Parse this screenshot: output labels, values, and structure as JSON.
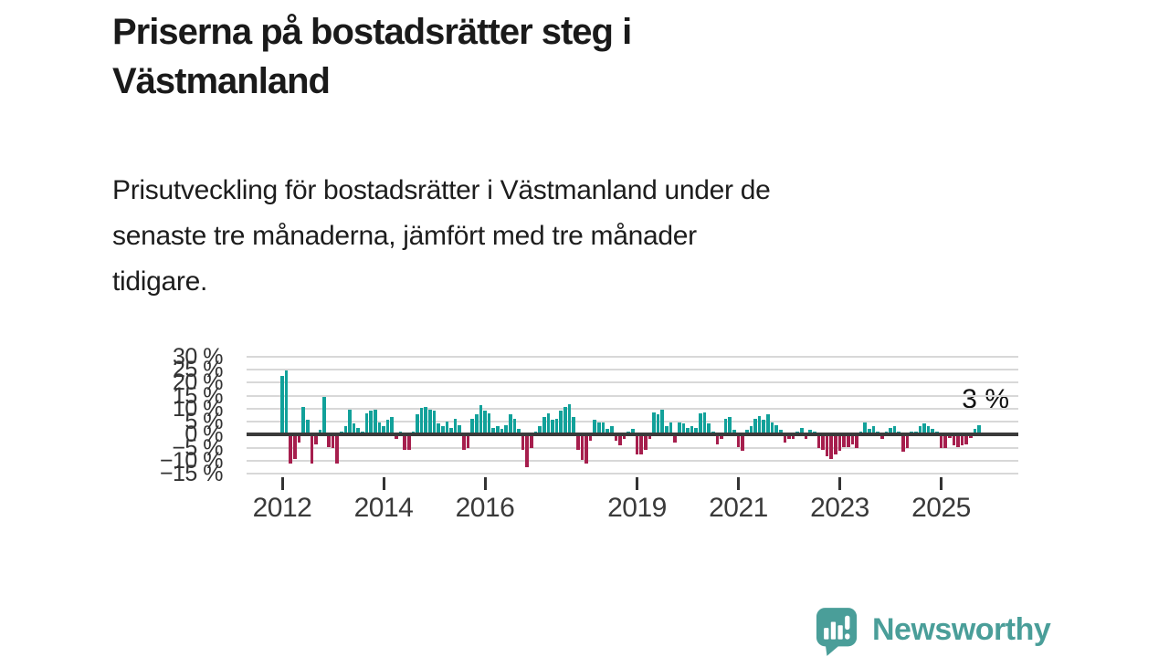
{
  "header": {
    "title_lines": [
      "Priserna på bostadsrätter steg i",
      "Västmanland"
    ],
    "subtitle_lines": [
      "Prisutveckling för bostadsrätter i Västmanland under de",
      "senaste tre månaderna, jämfört med tre månader",
      "tidigare."
    ]
  },
  "chart_data": {
    "type": "bar",
    "title": "Priserna på bostadsrätter steg i Västmanland",
    "subtitle": "Prisutveckling för bostadsrätter i Västmanland under de senaste tre månaderna, jämfört med tre månader tidigare.",
    "unit": "%",
    "frequency": "monthly",
    "start": "2012-01",
    "end": "2025-10",
    "values": [
      22,
      24,
      -10.5,
      -8.5,
      -2.5,
      10,
      5,
      -10.5,
      -3,
      1,
      14,
      -4,
      -4.5,
      -10.5,
      0.5,
      2.5,
      9,
      3.5,
      2,
      0.5,
      7.5,
      8.5,
      9,
      4,
      2.5,
      5,
      6,
      -1,
      0.5,
      -5,
      -5,
      0.5,
      7,
      9.5,
      10,
      9,
      8.5,
      3.5,
      2.5,
      4.5,
      2,
      5.5,
      3,
      -5,
      -4.5,
      5.5,
      7,
      10.5,
      8.5,
      7.5,
      2,
      2.5,
      1.5,
      3,
      7,
      5.5,
      1.5,
      -5,
      -12,
      -4.5,
      0.5,
      2.5,
      6,
      7.5,
      5,
      5.5,
      8.5,
      10,
      11,
      6,
      -5,
      -9,
      -10.5,
      -1.5,
      5,
      4,
      4,
      1.5,
      2.5,
      -1.5,
      -3.5,
      -1,
      0.5,
      1.5,
      -7,
      -7,
      -5,
      -1,
      8,
      7,
      9,
      2.5,
      4,
      -2.5,
      4,
      3.5,
      2,
      2.5,
      2,
      7.5,
      8,
      3.5,
      0.5,
      -3,
      -1,
      5.5,
      6,
      1,
      -4,
      -5.5,
      1,
      2.5,
      5.5,
      6.5,
      5,
      7,
      4,
      3,
      1,
      -2.5,
      -1,
      -1,
      0.5,
      2,
      -1,
      1,
      0.5,
      -4.5,
      -5,
      -7.5,
      -8.5,
      -7,
      -5.5,
      -4,
      -4,
      -3,
      -4.5,
      0.5,
      4,
      1.5,
      2.5,
      0.5,
      -1,
      0.5,
      2,
      2.5,
      0.5,
      -6,
      -4.5,
      0.5,
      0.5,
      2.5,
      3.5,
      2.5,
      1.5,
      0.5,
      -4.5,
      -4.5,
      -0.5,
      -3.5,
      -4,
      -3.5,
      -3,
      -0.5,
      1.5,
      3
    ],
    "y_ticks": [
      30,
      25,
      20,
      15,
      10,
      5,
      0,
      -5,
      -10,
      -15
    ],
    "y_tick_labels": [
      "30 %",
      "25 %",
      "20 %",
      "15 %",
      "10 %",
      "5 %",
      "0 %",
      "−5 %",
      "−10 %",
      "−15 %"
    ],
    "ylim": [
      -15,
      30
    ],
    "x_tick_labels": [
      "2012",
      "2014",
      "2016",
      "2019",
      "2021",
      "2023",
      "2025"
    ],
    "grid": true,
    "legend": false,
    "annotation": {
      "text": "3 %",
      "value": 3
    },
    "colors": {
      "positive": "#12a19a",
      "negative": "#a61e4d",
      "grid": "#d8d8d8",
      "zero_line": "#3a3a3a",
      "text": "#1a1a1a"
    }
  },
  "footer": {
    "logo_text": "Newsworthy",
    "logo_color": "#4a9e99"
  }
}
